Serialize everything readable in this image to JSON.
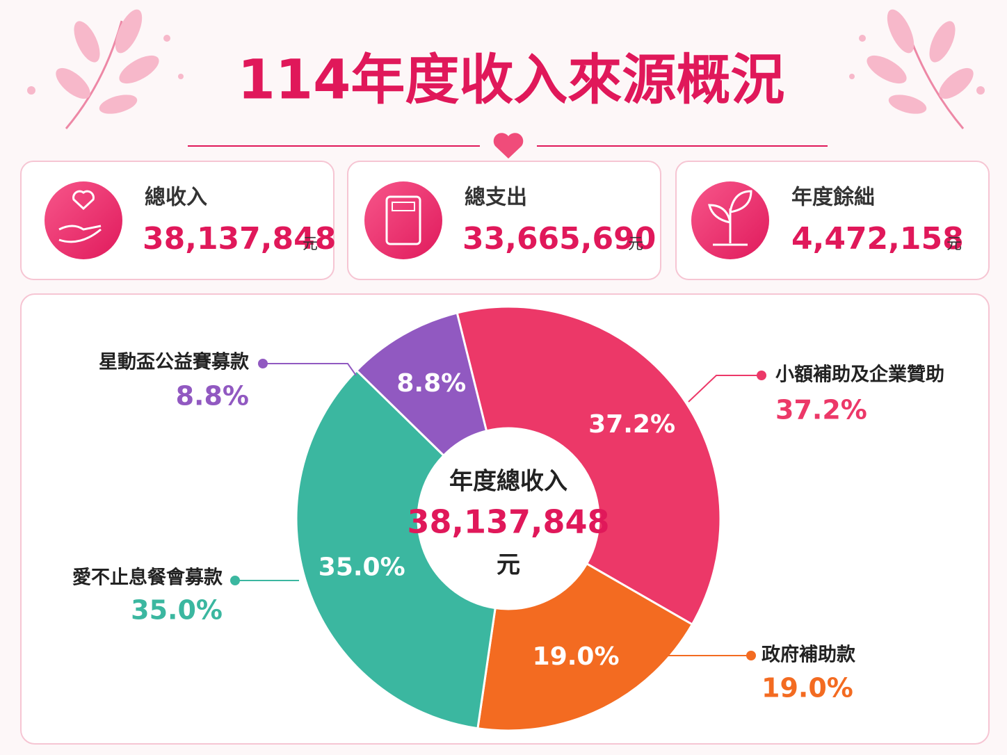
{
  "title": "114年度收入來源概況",
  "cards": [
    {
      "label": "總收入",
      "value": "38,137,848",
      "unit": "元"
    },
    {
      "label": "總支出",
      "value": "33,665,690",
      "unit": "元"
    },
    {
      "label": "年度餘絀",
      "value": "4,472,158",
      "unit": "元"
    }
  ],
  "chart_data": {
    "type": "donut",
    "center_label": "年度總收入",
    "center_value": "38,137,848",
    "center_unit": "元",
    "categories": [
      "小額補助及企業贊助",
      "政府補助款",
      "愛不止息餐會募款",
      "星動盃公益賽募款"
    ],
    "values": [
      37.2,
      19.0,
      35.0,
      8.8
    ],
    "value_labels": [
      "37.2%",
      "19.0%",
      "35.0%",
      "8.8%"
    ],
    "colors": [
      "#ec3868",
      "#f36b21",
      "#3bb7a0",
      "#9159c1"
    ]
  }
}
